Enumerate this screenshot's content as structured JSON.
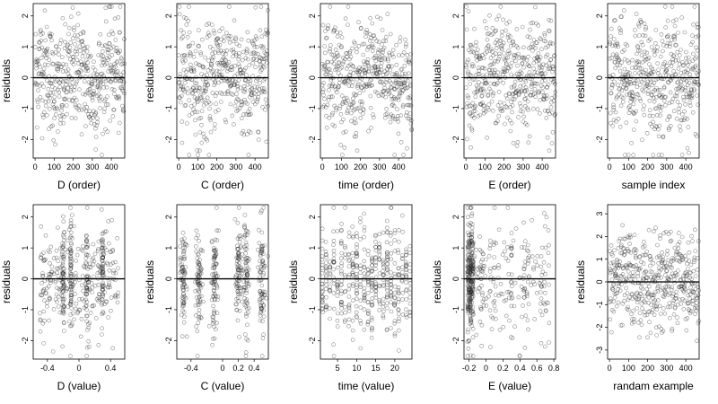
{
  "figure": {
    "background": "#ffffff",
    "point_color": "#333333",
    "reference_line_color": "#000000"
  },
  "chart_data": [
    {
      "type": "scatter",
      "row": 0,
      "col": 0,
      "xlabel": "D (order)",
      "ylabel": "residuals",
      "xlim": [
        -10,
        470
      ],
      "ylim": [
        -2.6,
        2.4
      ],
      "xticks": [
        0,
        100,
        200,
        300,
        400
      ],
      "yticks": [
        -2,
        -1,
        0,
        1,
        2
      ],
      "reference_line_y": 0,
      "n_points": 470,
      "x": {
        "kind": "index"
      },
      "y": {
        "shape": "sinusoid",
        "amp": 0.4,
        "period": 180,
        "phase": 0.3,
        "sd": 0.9
      }
    },
    {
      "type": "scatter",
      "row": 0,
      "col": 1,
      "xlabel": "C (order)",
      "ylabel": "residuals",
      "xlim": [
        -10,
        470
      ],
      "ylim": [
        -2.6,
        2.4
      ],
      "xticks": [
        0,
        100,
        200,
        300,
        400
      ],
      "yticks": [
        -2,
        -1,
        0,
        1,
        2
      ],
      "reference_line_y": 0,
      "n_points": 470,
      "x": {
        "kind": "index"
      },
      "y": {
        "shape": "sinusoid",
        "amp": 0.5,
        "period": 220,
        "phase": 1.2,
        "sd": 0.9
      }
    },
    {
      "type": "scatter",
      "row": 0,
      "col": 2,
      "xlabel": "time (order)",
      "ylabel": "residuals",
      "xlim": [
        -10,
        470
      ],
      "ylim": [
        -2.6,
        2.4
      ],
      "xticks": [
        0,
        100,
        200,
        300,
        400
      ],
      "yticks": [
        -2,
        -1,
        0,
        1,
        2
      ],
      "reference_line_y": 0,
      "n_points": 470,
      "x": {
        "kind": "index"
      },
      "y": {
        "shape": "sinusoid",
        "amp": 0.4,
        "period": 260,
        "phase": 0.8,
        "sd": 0.9
      }
    },
    {
      "type": "scatter",
      "row": 0,
      "col": 3,
      "xlabel": "E (order)",
      "ylabel": "residuals",
      "xlim": [
        -10,
        470
      ],
      "ylim": [
        -2.6,
        2.4
      ],
      "xticks": [
        0,
        100,
        200,
        300,
        400
      ],
      "yticks": [
        -2,
        -1,
        0,
        1,
        2
      ],
      "reference_line_y": 0,
      "n_points": 470,
      "x": {
        "kind": "index"
      },
      "y": {
        "shape": "sinusoid",
        "amp": 0.3,
        "period": 200,
        "phase": 2.0,
        "sd": 0.9
      }
    },
    {
      "type": "scatter",
      "row": 0,
      "col": 4,
      "xlabel": "sample index",
      "ylabel": "residuals",
      "xlim": [
        -10,
        470
      ],
      "ylim": [
        -2.6,
        2.4
      ],
      "xticks": [
        0,
        100,
        200,
        300,
        400
      ],
      "yticks": [
        -2,
        -1,
        0,
        1,
        2
      ],
      "reference_line_y": 0,
      "n_points": 470,
      "x": {
        "kind": "index"
      },
      "y": {
        "shape": "sinusoid",
        "amp": 0.35,
        "period": 150,
        "phase": 0.5,
        "sd": 0.9
      }
    },
    {
      "type": "scatter",
      "row": 1,
      "col": 0,
      "xlabel": "D (value)",
      "ylabel": "residuals",
      "xlim": [
        -0.58,
        0.58
      ],
      "ylim": [
        -2.6,
        2.4
      ],
      "xticks": [
        -0.4,
        0,
        0.4
      ],
      "yticks": [
        -2,
        -1,
        0,
        1,
        2
      ],
      "reference_line_y": 0,
      "n_points": 470,
      "x": {
        "kind": "spread",
        "min": -0.5,
        "max": 0.5,
        "columns": [
          -0.2,
          -0.1,
          0.1,
          0.3
        ],
        "column_share": 0.45
      },
      "y": {
        "shape": "noise",
        "sd": 0.9
      }
    },
    {
      "type": "scatter",
      "row": 1,
      "col": 1,
      "xlabel": "C (value)",
      "ylabel": "residuals",
      "xlim": [
        -0.58,
        0.58
      ],
      "ylim": [
        -2.6,
        2.4
      ],
      "xticks": [
        -0.4,
        0,
        0.2,
        0.4
      ],
      "yticks": [
        -2,
        -1,
        0,
        1,
        2
      ],
      "reference_line_y": 0,
      "n_points": 470,
      "x": {
        "kind": "columns",
        "values": [
          -0.5,
          -0.3,
          -0.1,
          0.2,
          0.3,
          0.5
        ],
        "jitter": 0.02
      },
      "y": {
        "shape": "noise",
        "sd": 0.9
      }
    },
    {
      "type": "scatter",
      "row": 1,
      "col": 2,
      "xlabel": "time (value)",
      "ylabel": "residuals",
      "xlim": [
        0.5,
        24.5
      ],
      "ylim": [
        -2.6,
        2.4
      ],
      "xticks": [
        5,
        10,
        15,
        20
      ],
      "yticks": [
        -2,
        -1,
        0,
        1,
        2
      ],
      "reference_line_y": 0,
      "n_points": 470,
      "x": {
        "kind": "columns",
        "values": [
          1,
          2,
          3,
          4,
          5,
          6,
          7,
          8,
          9,
          10,
          11,
          12,
          13,
          14,
          15,
          16,
          17,
          18,
          19,
          20,
          21,
          22,
          23,
          24
        ],
        "jitter": 0.05
      },
      "y": {
        "shape": "noise",
        "sd": 0.9
      }
    },
    {
      "type": "scatter",
      "row": 1,
      "col": 3,
      "xlabel": "E (value)",
      "ylabel": "residuals",
      "xlim": [
        -0.26,
        0.82
      ],
      "ylim": [
        -2.6,
        2.4
      ],
      "xticks": [
        -0.2,
        0,
        0.2,
        0.4,
        0.6,
        0.8
      ],
      "yticks": [
        -2,
        -1,
        0,
        1,
        2
      ],
      "reference_line_y": 0,
      "n_points": 470,
      "x": {
        "kind": "skewed",
        "min": -0.22,
        "max": 0.75,
        "dense_min": -0.22,
        "dense_max": -0.15,
        "dense_share": 0.55,
        "columns": [
          -0.05,
          0.05,
          0.1,
          0.3,
          0.45,
          0.5,
          0.65,
          0.7
        ]
      },
      "y": {
        "shape": "noise",
        "sd": 0.9
      }
    },
    {
      "type": "scatter",
      "row": 1,
      "col": 4,
      "xlabel": "randam example",
      "ylabel": "residuals",
      "xlim": [
        -10,
        470
      ],
      "ylim": [
        -3.4,
        3.4
      ],
      "xticks": [
        0,
        100,
        200,
        300,
        400
      ],
      "yticks": [
        -3,
        -2,
        -1,
        0,
        1,
        2,
        3
      ],
      "reference_line_y": 0,
      "n_points": 470,
      "x": {
        "kind": "index"
      },
      "y": {
        "shape": "sinusoid",
        "amp": 0.2,
        "period": 300,
        "phase": 0.0,
        "sd": 1.0
      }
    }
  ]
}
